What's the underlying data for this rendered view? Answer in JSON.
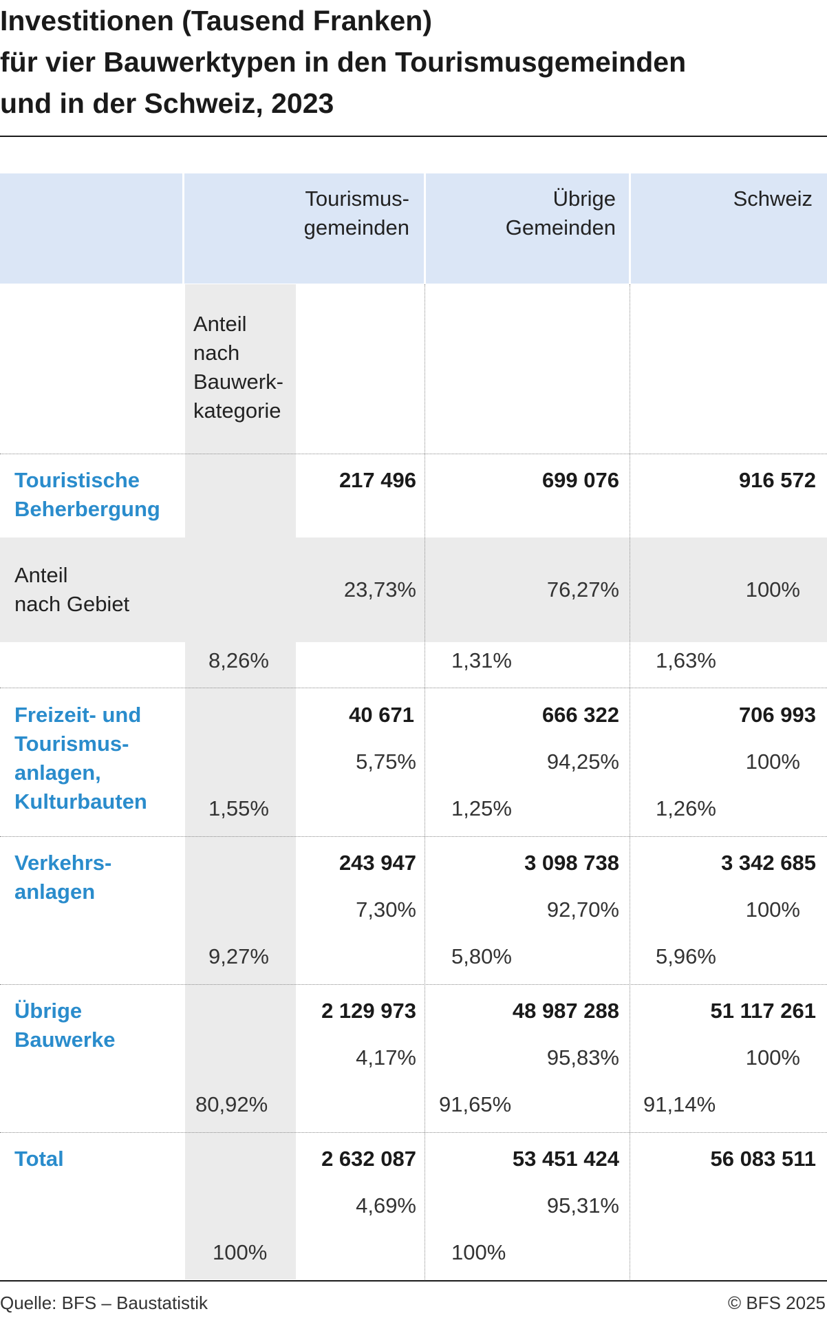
{
  "title_lines": [
    "Investitionen (Tausend Franken)",
    "für vier Bauwerktypen in den Tourismusgemeinden",
    "und in der Schweiz, 2023"
  ],
  "headers": {
    "tourism": [
      "Tourismus-",
      "gemeinden"
    ],
    "other": [
      "Übrige",
      "Gemeinden"
    ],
    "switzerland": [
      "Schweiz"
    ]
  },
  "share_by_category_label": [
    "Anteil",
    "nach",
    "Bauwerk-",
    "kategorie"
  ],
  "share_by_area_label": [
    "Anteil",
    "nach Gebiet"
  ],
  "chart_data": {
    "type": "table",
    "columns": [
      "Tourismusgemeinden",
      "Übrige Gemeinden",
      "Schweiz"
    ],
    "rows": [
      {
        "label": [
          "Touristische",
          "Beherbergung"
        ],
        "values": [
          "217 496",
          "699 076",
          "916 572"
        ],
        "share_by_area": [
          "23,73%",
          "76,27%",
          "100%"
        ],
        "share_by_category": [
          "8,26%",
          "1,31%",
          "1,63%"
        ]
      },
      {
        "label": [
          "Freizeit- und",
          "Tourismus-",
          "anlagen,",
          "Kulturbauten"
        ],
        "values": [
          "40 671",
          "666 322",
          "706 993"
        ],
        "share_by_area": [
          "5,75%",
          "94,25%",
          "100%"
        ],
        "share_by_category": [
          "1,55%",
          "1,25%",
          "1,26%"
        ]
      },
      {
        "label": [
          "Verkehrs-",
          "anlagen"
        ],
        "values": [
          "243 947",
          "3 098 738",
          "3 342 685"
        ],
        "share_by_area": [
          "7,30%",
          "92,70%",
          "100%"
        ],
        "share_by_category": [
          "9,27%",
          "5,80%",
          "5,96%"
        ]
      },
      {
        "label": [
          "Übrige",
          "Bauwerke"
        ],
        "values": [
          "2 129 973",
          "48 987 288",
          "51 117 261"
        ],
        "share_by_area": [
          "4,17%",
          "95,83%",
          "100%"
        ],
        "share_by_category": [
          "80,92%",
          "91,65%",
          "91,14%"
        ]
      },
      {
        "label": [
          "Total"
        ],
        "values": [
          "2 632 087",
          "53 451 424",
          "56 083 511"
        ],
        "share_by_area": [
          "4,69%",
          "95,31%",
          ""
        ],
        "share_by_category": [
          "100%",
          "100%",
          ""
        ]
      }
    ]
  },
  "footer": {
    "source": "Quelle: BFS – Baustatistik",
    "copyright": "© BFS 2025"
  }
}
